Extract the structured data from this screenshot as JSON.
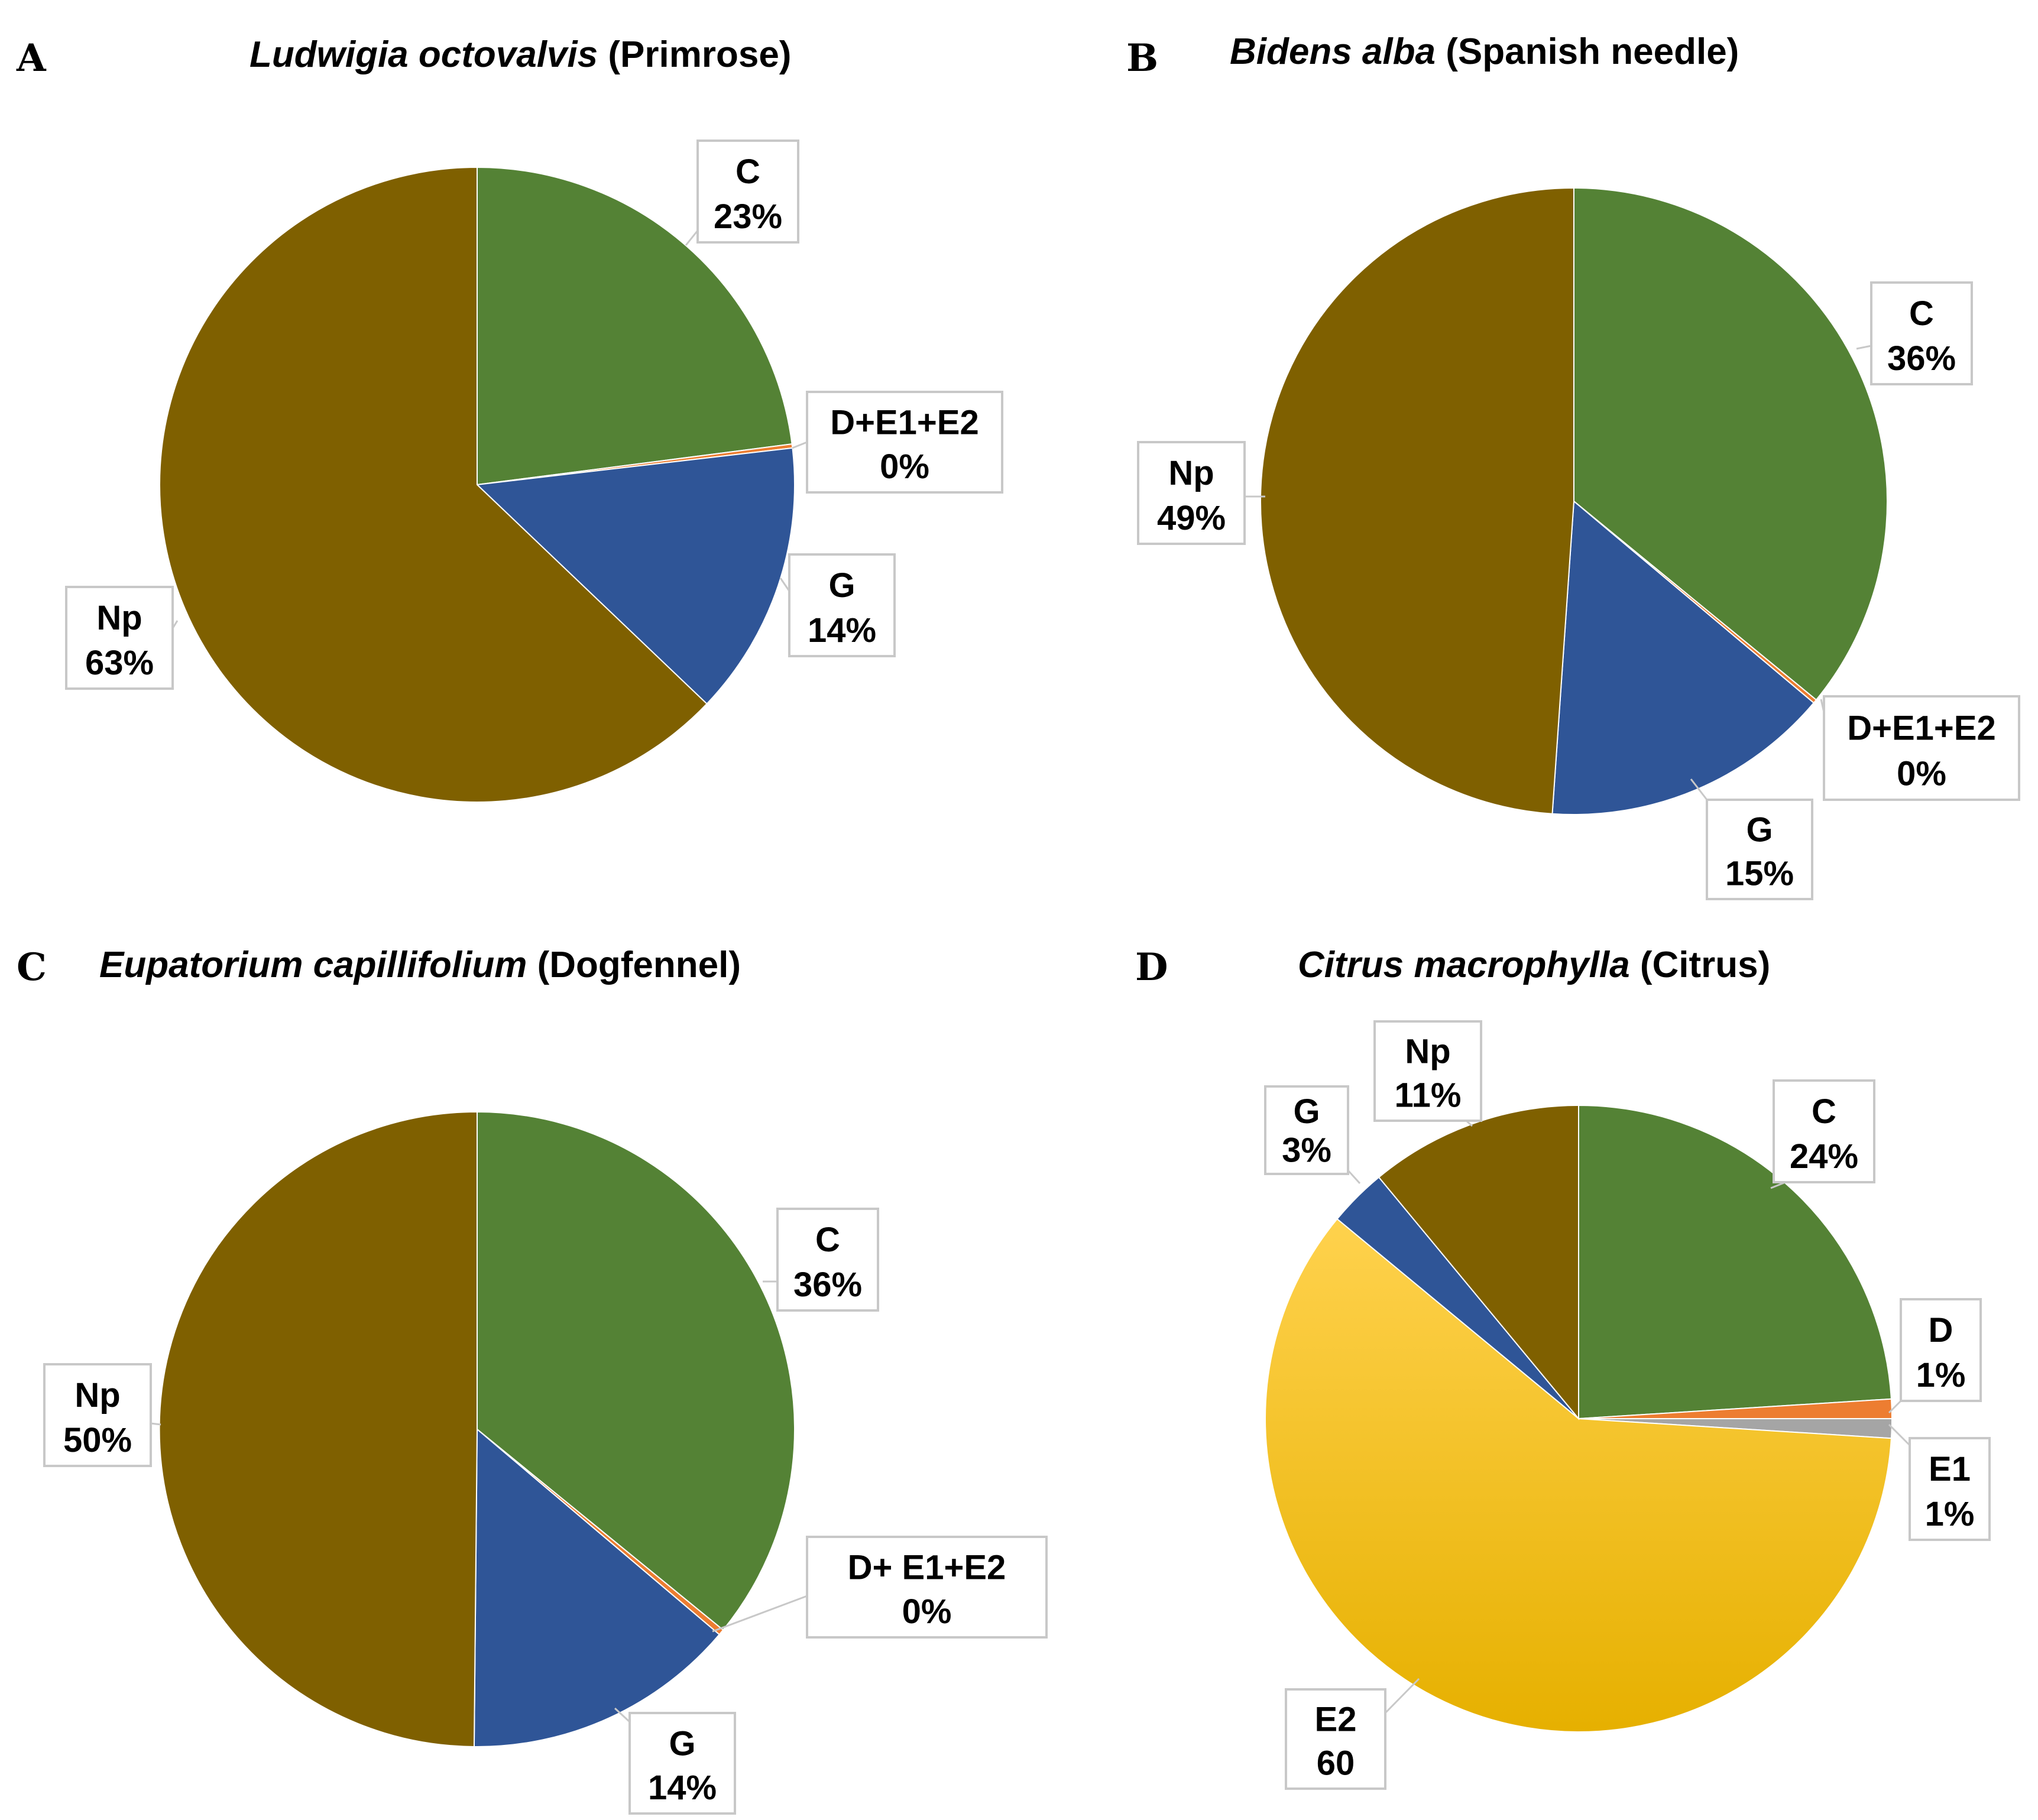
{
  "chart_data": [
    {
      "type": "pie",
      "panel": "A",
      "title_italic": "Ludwigia octovalvis",
      "title_rest": " (Primrose)",
      "slices": [
        {
          "name": "C",
          "label_line1": "C",
          "label_line2": "23%",
          "value": 23,
          "color": "#548235"
        },
        {
          "name": "D+E1+E2",
          "label_line1": "D+E1+E2",
          "label_line2": "0%",
          "value": 0.2,
          "color": "#ed7d31"
        },
        {
          "name": "G",
          "label_line1": "G",
          "label_line2": "14%",
          "value": 14,
          "color": "#2f5597"
        },
        {
          "name": "Np",
          "label_line1": "Np",
          "label_line2": "63%",
          "value": 63,
          "color": "#7f6000"
        }
      ]
    },
    {
      "type": "pie",
      "panel": "B",
      "title_italic": "Bidens alba",
      "title_rest": " (Spanish needle)",
      "slices": [
        {
          "name": "C",
          "label_line1": "C",
          "label_line2": "36%",
          "value": 36,
          "color": "#548235"
        },
        {
          "name": "D+E1+E2",
          "label_line1": "D+E1+E2",
          "label_line2": "0%",
          "value": 0.2,
          "color": "#ed7d31"
        },
        {
          "name": "G",
          "label_line1": "G",
          "label_line2": "15%",
          "value": 15,
          "color": "#2f5597"
        },
        {
          "name": "Np",
          "label_line1": "Np",
          "label_line2": "49%",
          "value": 49,
          "color": "#7f6000"
        }
      ]
    },
    {
      "type": "pie",
      "panel": "C",
      "title_italic": "Eupatorium capillifolium",
      "title_rest": " (Dogfennel)",
      "slices": [
        {
          "name": "C",
          "label_line1": "C",
          "label_line2": "36%",
          "value": 36,
          "color": "#548235"
        },
        {
          "name": "D+ E1+E2",
          "label_line1": "D+ E1+E2",
          "label_line2": "0%",
          "value": 0.3,
          "color": "#ed7d31"
        },
        {
          "name": "G",
          "label_line1": "G",
          "label_line2": "14%",
          "value": 14,
          "color": "#2f5597"
        },
        {
          "name": "Np",
          "label_line1": "Np",
          "label_line2": "50%",
          "value": 50,
          "color": "#7f6000"
        }
      ]
    },
    {
      "type": "pie",
      "panel": "D",
      "title_italic": "Citrus macrophylla",
      "title_rest": " (Citrus)",
      "slices": [
        {
          "name": "C",
          "label_line1": "C",
          "label_line2": "24%",
          "value": 24,
          "color": "#548235"
        },
        {
          "name": "D",
          "label_line1": "D",
          "label_line2": "1%",
          "value": 1,
          "color": "#ed7d31"
        },
        {
          "name": "E1",
          "label_line1": "E1",
          "label_line2": "1%",
          "value": 1,
          "color": "#a5a5a5"
        },
        {
          "name": "E2",
          "label_line1": "E2",
          "label_line2": "60",
          "value": 60,
          "color": "#ffc000"
        },
        {
          "name": "G",
          "label_line1": "G",
          "label_line2": "3%",
          "value": 3,
          "color": "#2f5597"
        },
        {
          "name": "Np",
          "label_line1": "Np",
          "label_line2": "11%",
          "value": 11,
          "color": "#7f6000"
        }
      ]
    }
  ]
}
